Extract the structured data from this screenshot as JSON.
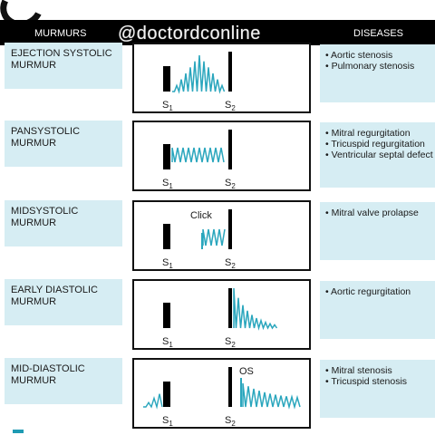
{
  "header": {
    "left_title": "MURMURS",
    "right_title": "DISEASES",
    "watermark": "@doctordconline"
  },
  "colors": {
    "wave": "#2aa6bd",
    "box_fill": "#d6edf3",
    "header_bg": "#000000"
  },
  "rows": [
    {
      "murmur": "EJECTION SYSTOLIC\nMURMUR",
      "diseases": [
        "Aortic stenosis",
        "Pulmonary stenosis"
      ],
      "pattern": "crescendo-decrescendo",
      "labels": {
        "s1": "S",
        "s2": "S",
        "extra": ""
      }
    },
    {
      "murmur": "PANSYSTOLIC\nMURMUR",
      "diseases": [
        "Mitral regurgitation",
        "Tricuspid regurgitation",
        "Ventricular septal defect"
      ],
      "pattern": "holosystolic",
      "labels": {
        "s1": "S",
        "s2": "S",
        "extra": ""
      }
    },
    {
      "murmur": "MIDSYSTOLIC\nMURMUR",
      "diseases": [
        "Mitral valve prolapse"
      ],
      "pattern": "click-late-systolic",
      "labels": {
        "s1": "S",
        "s2": "S",
        "extra": "Click"
      }
    },
    {
      "murmur": "EARLY DIASTOLIC\nMURMUR",
      "diseases": [
        "Aortic regurgitation"
      ],
      "pattern": "decrescendo-diastolic",
      "labels": {
        "s1": "S",
        "s2": "S",
        "extra": ""
      }
    },
    {
      "murmur": "MID-DIASTOLIC\nMURMUR",
      "diseases": [
        "Mitral stenosis",
        "Tricuspid stenosis"
      ],
      "pattern": "opening-snap-rumble",
      "labels": {
        "s1": "S",
        "s2": "S",
        "extra": "OS"
      }
    }
  ]
}
